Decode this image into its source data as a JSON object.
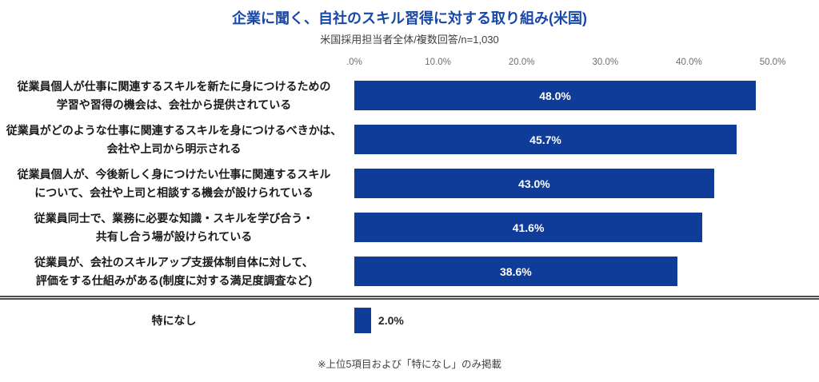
{
  "chart_data": {
    "type": "bar",
    "orientation": "horizontal",
    "title": "企業に聞く、自社のスキル習得に対する取り組み(米国)",
    "subtitle": "米国採用担当者全体/複数回答/n=1,030",
    "categories": [
      "従業員個人が仕事に関連するスキルを新たに身につけるための\n学習や習得の機会は、会社から提供されている",
      "従業員がどのような仕事に関連するスキルを身につけるべきかは、\n会社や上司から明示される",
      "従業員個人が、今後新しく身につけたい仕事に関連するスキル\nについて、会社や上司と相談する機会が設けられている",
      "従業員同士で、業務に必要な知識・スキルを学び合う・\n共有し合う場が設けられている",
      "従業員が、会社のスキルアップ支援体制自体に対して、\n評価をする仕組みがある(制度に対する満足度調査など)",
      "特になし"
    ],
    "values": [
      48.0,
      45.7,
      43.0,
      41.6,
      38.6,
      2.0
    ],
    "value_labels": [
      "48.0%",
      "45.7%",
      "43.0%",
      "41.6%",
      "38.6%",
      "2.0%"
    ],
    "xlim": [
      0,
      50
    ],
    "x_ticks": [
      0,
      10,
      20,
      30,
      40,
      50
    ],
    "x_tick_labels": [
      ".0%",
      "10.0%",
      "20.0%",
      "30.0%",
      "40.0%",
      "50.0%"
    ],
    "grid": false,
    "legend": false,
    "bar_color": "#0e3c98",
    "separator_after_index": 4,
    "note": "※上位5項目および「特になし」のみ掲載"
  },
  "colors": {
    "title": "#1747a8",
    "bar": "#0e3c98",
    "bar_label": "#ffffff",
    "axis_label": "#6e6e6e",
    "category_label": "#1a1a1a",
    "divider": "#4d4d4d"
  }
}
